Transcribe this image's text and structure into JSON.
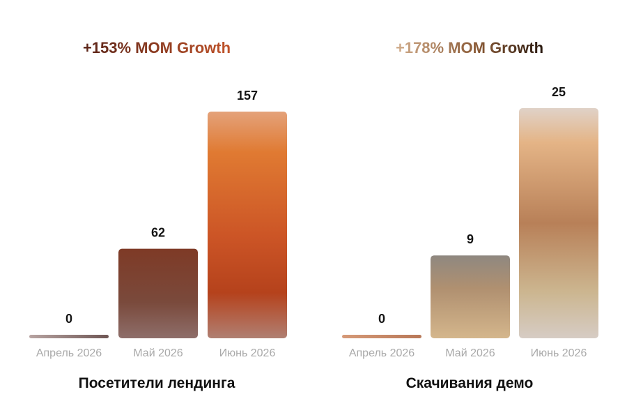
{
  "chart_data": [
    {
      "type": "bar",
      "title": "Посетители лендинга",
      "growth": "+153% MOM Growth",
      "categories": [
        "Апрель 2026",
        "Май 2026",
        "Июнь 2026"
      ],
      "values": [
        0,
        62,
        157
      ],
      "ylim": [
        0,
        157
      ],
      "grid": false,
      "legend": "none"
    },
    {
      "type": "bar",
      "title": "Скачивания демо",
      "growth": "+178% MOM Growth",
      "categories": [
        "Апрель 2026",
        "Май 2026",
        "Июнь 2026"
      ],
      "values": [
        0,
        9,
        25
      ],
      "ylim": [
        0,
        25
      ],
      "grid": false,
      "legend": "none"
    }
  ],
  "colors": {
    "growth_left": [
      "#5a2418",
      "#c0532a"
    ],
    "growth_right": [
      "#c9a483",
      "#7a4a2a",
      "#2a1a10"
    ],
    "left_zero": "#8c7472",
    "left_mid": [
      "#7e3f2c",
      "#8a5f58"
    ],
    "left_tall": [
      "#e08a4a",
      "#c8501f",
      "#b8441c",
      "#a87060"
    ],
    "right_zero": "#c98a66",
    "right_mid": [
      "#9a8a7c",
      "#c4a070"
    ],
    "right_tall": [
      "#dcc8b8",
      "#b47a52",
      "#cdb896"
    ]
  }
}
